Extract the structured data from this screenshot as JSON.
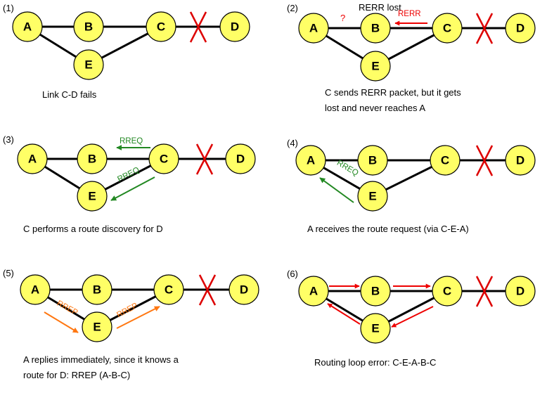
{
  "colors": {
    "node_fill": "#ffff66",
    "link": "#000000",
    "failure_mark": "#dd0000",
    "rerr": "#ee0000",
    "rreq": "#228822",
    "rrep": "#ff7711"
  },
  "panels": [
    {
      "number": "(1)",
      "nodes": [
        "A",
        "B",
        "C",
        "D",
        "E"
      ],
      "caption_lines": [
        "Link C-D fails"
      ]
    },
    {
      "number": "(2)",
      "nodes": [
        "A",
        "B",
        "C",
        "D",
        "E"
      ],
      "annotations": {
        "rerr_lost": "RERR lost",
        "rerr": "RERR",
        "question": "?"
      },
      "caption_lines": [
        "C sends RERR packet, but it gets",
        "lost and never reaches A"
      ]
    },
    {
      "number": "(3)",
      "nodes": [
        "A",
        "B",
        "C",
        "D",
        "E"
      ],
      "annotations": {
        "rreq_top": "RREQ",
        "rreq_bottom": "RREQ"
      },
      "caption_lines": [
        "C performs a route discovery for D"
      ]
    },
    {
      "number": "(4)",
      "nodes": [
        "A",
        "B",
        "C",
        "D",
        "E"
      ],
      "annotations": {
        "rreq": "RREQ"
      },
      "caption_lines": [
        "A receives the route request (via C-E-A)"
      ]
    },
    {
      "number": "(5)",
      "nodes": [
        "A",
        "B",
        "C",
        "D",
        "E"
      ],
      "annotations": {
        "rrep_left": "RREP",
        "rrep_right": "RREP"
      },
      "caption_lines": [
        "A replies immediately, since it knows a",
        "route for D: RREP (A-B-C)"
      ]
    },
    {
      "number": "(6)",
      "nodes": [
        "A",
        "B",
        "C",
        "D",
        "E"
      ],
      "caption_lines": [
        "Routing loop error: C-E-A-B-C"
      ]
    }
  ]
}
